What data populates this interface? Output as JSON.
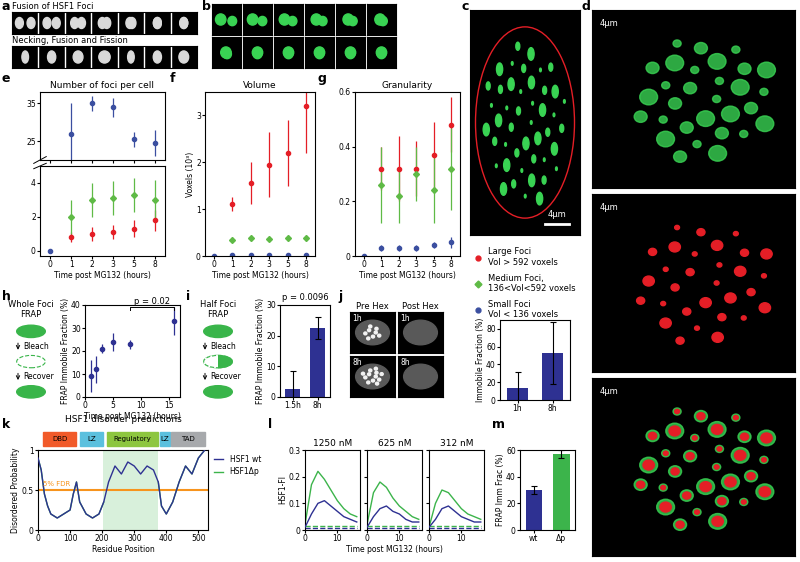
{
  "panel_letters": [
    "a",
    "b",
    "c",
    "d",
    "e",
    "f",
    "g",
    "h",
    "i",
    "j",
    "k",
    "l",
    "m"
  ],
  "images": {
    "a": [
      "Fusion of HSF1 Foci",
      "Necking, Fusion and Fission"
    ],
    "scale_bar": "4μm",
    "j_columns": [
      "Pre Hex",
      "Post Hex"
    ],
    "j_rows": [
      "1h",
      "8h"
    ]
  },
  "schematics": [
    {
      "title": "Whole Foci\nFRAP",
      "steps": [
        "Bleach",
        "Recover"
      ]
    },
    {
      "title": "Half Foci\nFRAP",
      "steps": [
        "Bleach",
        "Recover"
      ]
    }
  ],
  "chart_data": [
    {
      "type": "scatter",
      "title": "Number of foci per cell",
      "categories": [
        "0",
        "1",
        "2",
        "3",
        "5",
        "8"
      ],
      "ylim": [
        20,
        38
      ],
      "yticks": [
        25,
        35
      ],
      "tick_labels": "y",
      "series": [
        {
          "name": "Small Foci\nVol < 136 voxels",
          "color": "#3b4fa0",
          "marker": "circle",
          "values": [
            null,
            27,
            35,
            34,
            25.5,
            24.5
          ],
          "errors": [
            null,
            8,
            2,
            2.5,
            2,
            3.5
          ]
        }
      ]
    },
    {
      "type": "scatter",
      "x_label": "Time post MG132 (hours)",
      "categories": [
        "0",
        "1",
        "2",
        "3",
        "5",
        "8"
      ],
      "ylim": [
        -0.3,
        5
      ],
      "yticks": [
        0,
        2,
        4
      ],
      "series": [
        {
          "name": "Large Foci\nVol > 592 voxels",
          "color": "#e41e26",
          "marker": "circle",
          "values": [
            null,
            0.8,
            1.0,
            1.1,
            1.3,
            1.8
          ],
          "errors": [
            null,
            0.3,
            0.4,
            0.4,
            0.5,
            0.6
          ]
        },
        {
          "name": "Medium Foci,\n136<Vol<592 voxels",
          "color": "#5fba46",
          "marker": "diamond",
          "values": [
            null,
            2.0,
            3.0,
            3.1,
            3.3,
            3.0
          ],
          "errors": [
            null,
            1.0,
            1.0,
            1.0,
            1.0,
            1.2
          ]
        },
        {
          "name": "Small Foci\nVol < 136 voxels",
          "color": "#3b4fa0",
          "marker": "circle",
          "values": [
            0,
            null,
            null,
            null,
            null,
            null
          ],
          "errors": [
            0,
            null,
            null,
            null,
            null,
            null
          ]
        }
      ]
    },
    {
      "type": "scatter",
      "title": "Volume",
      "x_label": "Time post MG132 (hours)",
      "y_label": "Voxels (10³)",
      "categories": [
        "0",
        "1",
        "2",
        "3",
        "5",
        "8"
      ],
      "ylim": [
        0,
        3.5
      ],
      "yticks": [
        0,
        1,
        2,
        3
      ],
      "legend": "right",
      "series": [
        {
          "name": "Large Foci\nVol > 592 voxels",
          "color": "#e41e26",
          "marker": "circle",
          "values": [
            null,
            1.1,
            1.55,
            1.95,
            2.2,
            3.2
          ],
          "errors": [
            null,
            0.15,
            0.45,
            0.7,
            0.7,
            1.0
          ]
        },
        {
          "name": "Medium Foci,\n136<Vol<592 voxels",
          "color": "#5fba46",
          "marker": "diamond",
          "values": [
            null,
            0.35,
            0.38,
            0.37,
            0.38,
            0.38
          ],
          "errors": [
            null,
            0.05,
            0.06,
            0.05,
            0.06,
            0.06
          ]
        },
        {
          "name": "Small Foci\nVol < 136 voxels",
          "color": "#3b4fa0",
          "marker": "circle",
          "values": [
            0,
            0.02,
            0.02,
            0.02,
            0.03,
            0.03
          ],
          "errors": [
            0,
            0.01,
            0.01,
            0.01,
            0.01,
            0.01
          ]
        }
      ]
    },
    {
      "type": "scatter",
      "title": "Granularity",
      "x_label": "Time post MG132 (hours)",
      "categories": [
        "0",
        "1",
        "2",
        "3",
        "5",
        "8"
      ],
      "ylim": [
        0,
        0.6
      ],
      "yticks": [
        0,
        0.2,
        0.4,
        0.6
      ],
      "series": [
        {
          "name": "Large Foci\nVol > 592 voxels",
          "color": "#e41e26",
          "marker": "circle",
          "values": [
            null,
            0.32,
            0.32,
            0.32,
            0.37,
            0.48
          ],
          "errors": [
            null,
            0.08,
            0.12,
            0.1,
            0.12,
            0.1
          ]
        },
        {
          "name": "Medium Foci,\n136<Vol<592 voxels",
          "color": "#5fba46",
          "marker": "diamond",
          "values": [
            null,
            0.26,
            0.22,
            0.3,
            0.24,
            0.32
          ],
          "errors": [
            null,
            0.14,
            0.1,
            0.1,
            0.12,
            0.15
          ]
        },
        {
          "name": "Small Foci\nVol < 136 voxels",
          "color": "#3b4fa0",
          "marker": "circle",
          "values": [
            0,
            0.03,
            0.03,
            0.03,
            0.04,
            0.05
          ],
          "errors": [
            0,
            0.01,
            0.01,
            0.01,
            0.01,
            0.02
          ]
        }
      ]
    },
    {
      "type": "scatter",
      "x_label": "Time post MG132 (hours)",
      "y_label": "FRAP Immobile Fraction (%)",
      "x": [
        1,
        2,
        3,
        5,
        8,
        16
      ],
      "xlim": [
        0,
        17
      ],
      "xticks": [
        0,
        5,
        10,
        15
      ],
      "ylim": [
        0,
        40
      ],
      "yticks": [
        0,
        10,
        20,
        30,
        40
      ],
      "series": [
        {
          "color": "#2e3192",
          "marker": "circle",
          "values": [
            9,
            12,
            21,
            24,
            23,
            33
          ],
          "errors": [
            7,
            6,
            2,
            4,
            2,
            6
          ]
        }
      ],
      "annotations": [
        {
          "text": "p = 0.02",
          "x1": 8,
          "x2": 16,
          "y": 39
        }
      ]
    },
    {
      "type": "bar",
      "y_label": "FRAP Immobile Fraction (%)",
      "categories": [
        "1.5h",
        "8h"
      ],
      "values": [
        2.5,
        22.5
      ],
      "errors": [
        6,
        3.5
      ],
      "color": "#2e3192",
      "ylim": [
        0,
        30
      ],
      "yticks": [
        0,
        10,
        20,
        30
      ],
      "annotations": [
        {
          "text": "p = 0.0096"
        }
      ]
    },
    {
      "type": "bar",
      "y_label": "Immobile Fraction (%)",
      "categories": [
        "1h",
        "8h"
      ],
      "values": [
        14,
        53
      ],
      "errors": [
        17,
        35
      ],
      "color": "#2e3192",
      "ylim": [
        0,
        90
      ],
      "yticks": [
        0,
        20,
        40,
        60,
        80
      ]
    },
    {
      "type": "line",
      "title": "HSF1 disorder predictions",
      "x_label": "Residue Position",
      "y_label": "Disordered Probability",
      "x": [
        0,
        10,
        20,
        30,
        40,
        60,
        80,
        100,
        110,
        120,
        130,
        150,
        170,
        190,
        205,
        220,
        240,
        260,
        280,
        300,
        320,
        340,
        360,
        375,
        385,
        400,
        420,
        440,
        460,
        480,
        500,
        520
      ],
      "xlim": [
        0,
        530
      ],
      "xticks": [
        0,
        100,
        200,
        300,
        400,
        500
      ],
      "ylim": [
        0,
        1
      ],
      "yticks": [
        0,
        0.5,
        1
      ],
      "legend": "right",
      "series": [
        {
          "name": "HSF1 wt",
          "color": "#2e3192",
          "values": [
            0.9,
            0.75,
            0.45,
            0.3,
            0.2,
            0.15,
            0.2,
            0.25,
            0.45,
            0.6,
            0.35,
            0.2,
            0.15,
            0.2,
            0.35,
            0.6,
            0.8,
            0.7,
            0.85,
            0.8,
            0.7,
            0.8,
            0.75,
            0.6,
            0.3,
            0.2,
            0.35,
            0.6,
            0.8,
            0.7,
            0.9,
            1.0
          ]
        },
        {
          "name": "HSF1Δp",
          "color": "#3cb44b",
          "values": [
            0.9,
            0.75,
            0.45,
            0.3,
            0.2,
            0.15,
            0.2,
            0.25,
            0.45,
            0.6,
            0.35,
            0.2,
            0.15,
            0.2,
            0.35,
            null,
            null,
            null,
            null,
            null,
            null,
            null,
            null,
            0.6,
            0.3,
            0.2,
            0.35,
            0.6,
            0.8,
            0.7,
            0.9,
            1.0
          ]
        }
      ],
      "domains": [
        {
          "label": "DBD",
          "start": 15,
          "end": 120,
          "color": "#f15a29"
        },
        {
          "label": "LZ",
          "start": 130,
          "end": 203,
          "color": "#5bc0de"
        },
        {
          "label": "Regulatory",
          "start": 215,
          "end": 375,
          "color": "#8dc63f"
        },
        {
          "label": "LZ",
          "start": 380,
          "end": 410,
          "color": "#5bc0de"
        },
        {
          "label": "TAD",
          "start": 415,
          "end": 520,
          "color": "#a7a9ac"
        }
      ],
      "shaded_range": [
        203,
        375
      ],
      "threshold": {
        "value": 0.5,
        "label": "5% FDR",
        "color": "#f7941d"
      }
    },
    {
      "type": "line",
      "title": "1250 nM",
      "y_label": "HSF1-FI",
      "x": [
        0,
        2,
        4,
        6,
        8,
        10,
        12,
        14,
        16
      ],
      "xlim": [
        0,
        17
      ],
      "xticks": [
        0,
        10
      ],
      "ylim": [
        0,
        0.3
      ],
      "yticks": [
        0,
        0.1,
        0.2,
        0.3
      ],
      "series": [
        {
          "name": "HSF1 wt",
          "color": "#2e3192",
          "line_style": "solid",
          "values": [
            0.01,
            0.06,
            0.1,
            0.11,
            0.09,
            0.07,
            0.05,
            0.04,
            0.03
          ]
        },
        {
          "name": "HSF1Δp",
          "color": "#3cb44b",
          "line_style": "solid",
          "values": [
            0.02,
            0.17,
            0.22,
            0.19,
            0.15,
            0.11,
            0.08,
            0.06,
            0.05
          ]
        },
        {
          "color": "#2e3192",
          "line_style": "dashed",
          "values": [
            0.008,
            0.008,
            0.008,
            0.008,
            0.008,
            0.008,
            0.008,
            0.008,
            0.008
          ]
        },
        {
          "color": "#3cb44b",
          "line_style": "dashed",
          "values": [
            0.015,
            0.015,
            0.015,
            0.015,
            0.015,
            0.015,
            0.015,
            0.015,
            0.015
          ]
        }
      ]
    },
    {
      "type": "line",
      "title": "625 nM",
      "x_label": "Time post MG132 (hours)",
      "tick_labels": "x",
      "x": [
        0,
        2,
        4,
        6,
        8,
        10,
        12,
        14,
        16
      ],
      "xlim": [
        0,
        17
      ],
      "xticks": [
        0,
        10
      ],
      "ylim": [
        0,
        0.3
      ],
      "yticks": [
        0,
        0.1,
        0.2,
        0.3
      ],
      "series": [
        {
          "name": "HSF1 wt",
          "color": "#2e3192",
          "line_style": "solid",
          "values": [
            0.01,
            0.05,
            0.08,
            0.09,
            0.07,
            0.06,
            0.04,
            0.03,
            0.03
          ]
        },
        {
          "name": "HSF1Δp",
          "color": "#3cb44b",
          "line_style": "solid",
          "values": [
            0.02,
            0.14,
            0.18,
            0.16,
            0.12,
            0.09,
            0.07,
            0.05,
            0.04
          ]
        },
        {
          "color": "#2e3192",
          "line_style": "dashed",
          "values": [
            0.008,
            0.008,
            0.008,
            0.008,
            0.008,
            0.008,
            0.008,
            0.008,
            0.008
          ]
        },
        {
          "color": "#3cb44b",
          "line_style": "dashed",
          "values": [
            0.015,
            0.015,
            0.015,
            0.015,
            0.015,
            0.015,
            0.015,
            0.015,
            0.015
          ]
        }
      ]
    },
    {
      "type": "line",
      "title": "312 nM",
      "tick_labels": "x",
      "x": [
        0,
        2,
        4,
        6,
        8,
        10,
        12,
        14,
        16
      ],
      "xlim": [
        0,
        17
      ],
      "xticks": [
        0,
        10
      ],
      "ylim": [
        0,
        0.3
      ],
      "yticks": [
        0,
        0.1,
        0.2,
        0.3
      ],
      "series": [
        {
          "name": "HSF1 wt",
          "color": "#2e3192",
          "line_style": "solid",
          "values": [
            0.01,
            0.04,
            0.08,
            0.09,
            0.07,
            0.05,
            0.04,
            0.03,
            0.03
          ]
        },
        {
          "name": "HSF1Δp",
          "color": "#3cb44b",
          "line_style": "solid",
          "values": [
            0.01,
            0.1,
            0.15,
            0.14,
            0.11,
            0.08,
            0.06,
            0.05,
            0.04
          ]
        },
        {
          "color": "#2e3192",
          "line_style": "dashed",
          "values": [
            0.008,
            0.008,
            0.008,
            0.008,
            0.008,
            0.008,
            0.008,
            0.008,
            0.008
          ]
        },
        {
          "color": "#3cb44b",
          "line_style": "dashed",
          "values": [
            0.015,
            0.015,
            0.015,
            0.015,
            0.015,
            0.015,
            0.015,
            0.015,
            0.015
          ]
        }
      ]
    },
    {
      "type": "bar",
      "y_label": "FRAP Imm Frac (%)",
      "categories": [
        "wt",
        "Δp"
      ],
      "values": [
        30,
        57
      ],
      "errors": [
        3,
        3
      ],
      "colors": [
        "#2e3192",
        "#3cb44b"
      ],
      "ylim": [
        0,
        60
      ],
      "yticks": [
        0,
        20,
        40,
        60
      ]
    }
  ]
}
